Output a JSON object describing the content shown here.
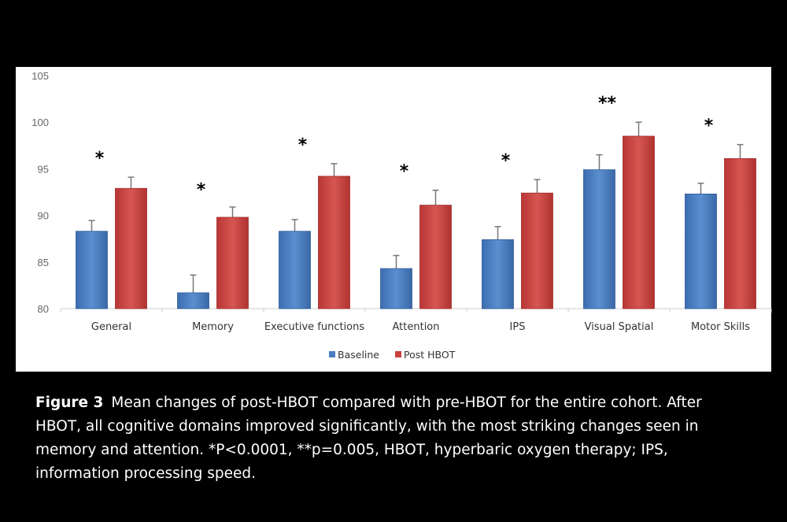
{
  "chart_data": {
    "type": "bar",
    "title": "",
    "xlabel": "",
    "ylabel": "",
    "ylim": [
      80,
      105
    ],
    "yticks": [
      "80",
      "85",
      "90",
      "95",
      "100",
      "105"
    ],
    "grid": false,
    "legend_position": "bottom-center",
    "categories": [
      "General",
      "Memory",
      "Executive functions",
      "Attention",
      "IPS",
      "Visual Spatial",
      "Motor Skills"
    ],
    "series": [
      {
        "name": "Baseline",
        "color": "#4a7ebf",
        "values": [
          88.3,
          81.7,
          88.3,
          84.3,
          87.4,
          94.9,
          92.3
        ],
        "errors": [
          1.15,
          1.9,
          1.25,
          1.4,
          1.4,
          1.6,
          1.15
        ]
      },
      {
        "name": "Post HBOT",
        "color": "#c9413f",
        "values": [
          92.9,
          89.8,
          94.2,
          91.1,
          92.4,
          98.5,
          96.1
        ],
        "errors": [
          1.2,
          1.1,
          1.35,
          1.6,
          1.45,
          1.5,
          1.5
        ]
      }
    ],
    "annotations": [
      "*",
      "*",
      "*",
      "*",
      "*",
      "**",
      "*"
    ]
  },
  "caption": {
    "label": "Figure 3",
    "text": "Mean changes of post-HBOT compared with pre-HBOT for the entire cohort. After HBOT, all cognitive domains improved significantly, with the most striking changes seen in memory and attention. *P<0.0001, **p=0.005, HBOT, hyperbaric oxygen therapy; IPS, information processing speed."
  }
}
